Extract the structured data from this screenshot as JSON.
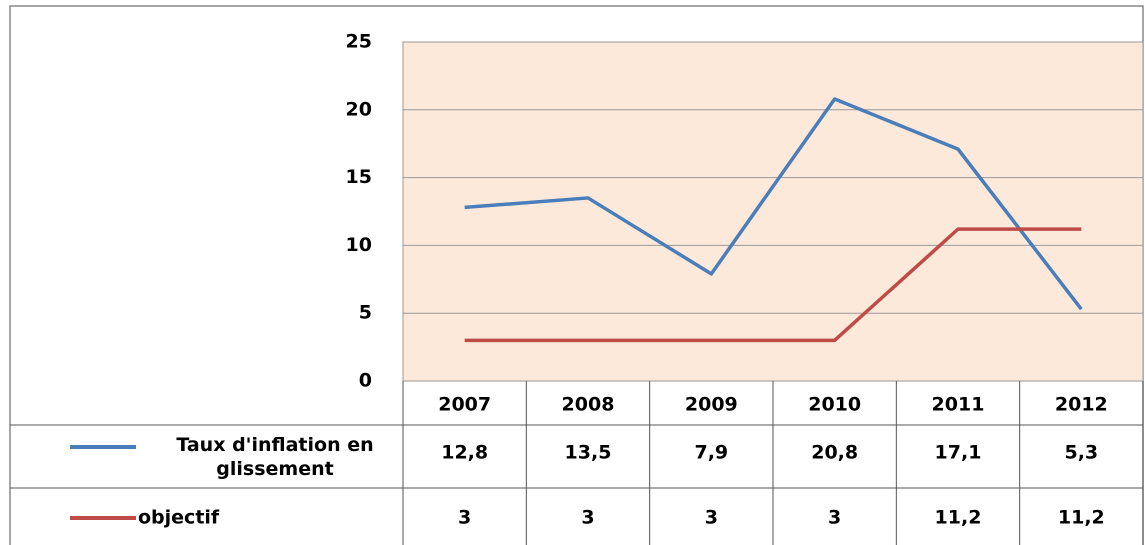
{
  "chart_data": {
    "type": "line",
    "categories": [
      "2007",
      "2008",
      "2009",
      "2010",
      "2011",
      "2012"
    ],
    "series": [
      {
        "name": "Taux d'inflation en glissement",
        "color": "#4a7ebb",
        "values": [
          12.8,
          13.5,
          7.9,
          20.8,
          17.1,
          5.3
        ],
        "value_labels": [
          "12,8",
          "13,5",
          "7,9",
          "20,8",
          "17,1",
          "5,3"
        ]
      },
      {
        "name": "objectif",
        "color": "#be4b48",
        "values": [
          3,
          3,
          3,
          3,
          11.2,
          11.2
        ],
        "value_labels": [
          "3",
          "3",
          "3",
          "3",
          "11,2",
          "11,2"
        ]
      }
    ],
    "ylim": [
      0,
      25
    ],
    "yticks": [
      0,
      5,
      10,
      15,
      20,
      25
    ],
    "grid": true,
    "background": "#fde9d9"
  }
}
